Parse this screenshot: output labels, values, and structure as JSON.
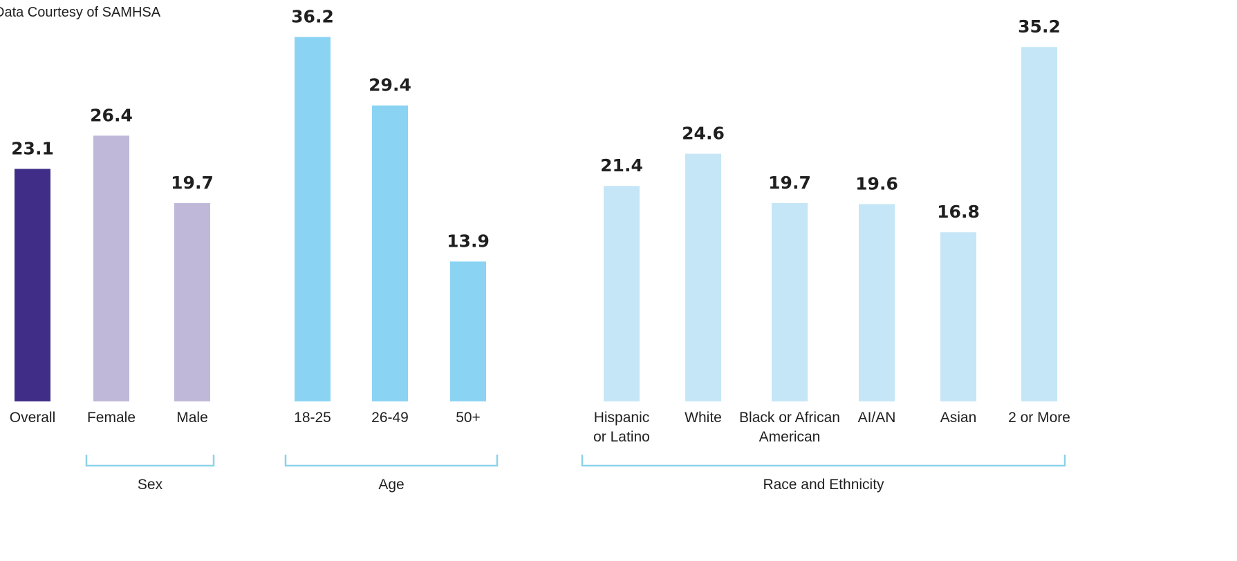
{
  "source_note": "Data Courtesy of SAMHSA",
  "colors": {
    "overall": "#3f2d87",
    "sex": "#bfb8d9",
    "age": "#8ad3f3",
    "race": "#c5e6f6",
    "bracket": "#8cd2ea",
    "text": "#1f1f1f"
  },
  "chart_data": {
    "type": "bar",
    "ylim": [
      0,
      40
    ],
    "grid": false,
    "categories": [
      "Overall",
      "Female",
      "Male",
      "18-25",
      "26-49",
      "50+",
      "Hispanic or Latino",
      "White",
      "Black or African American",
      "AI/AN",
      "Asian",
      "2 or More"
    ],
    "values": [
      23.1,
      26.4,
      19.7,
      36.2,
      29.4,
      13.9,
      21.4,
      24.6,
      19.7,
      19.6,
      16.8,
      35.2
    ],
    "groups": [
      {
        "name": "",
        "categories": [
          "Overall"
        ]
      },
      {
        "name": "Sex",
        "categories": [
          "Female",
          "Male"
        ]
      },
      {
        "name": "Age",
        "categories": [
          "18-25",
          "26-49",
          "50+"
        ]
      },
      {
        "name": "Race and Ethnicity",
        "categories": [
          "Hispanic or Latino",
          "White",
          "Black or African American",
          "AI/AN",
          "Asian",
          "2 or More"
        ]
      }
    ]
  }
}
